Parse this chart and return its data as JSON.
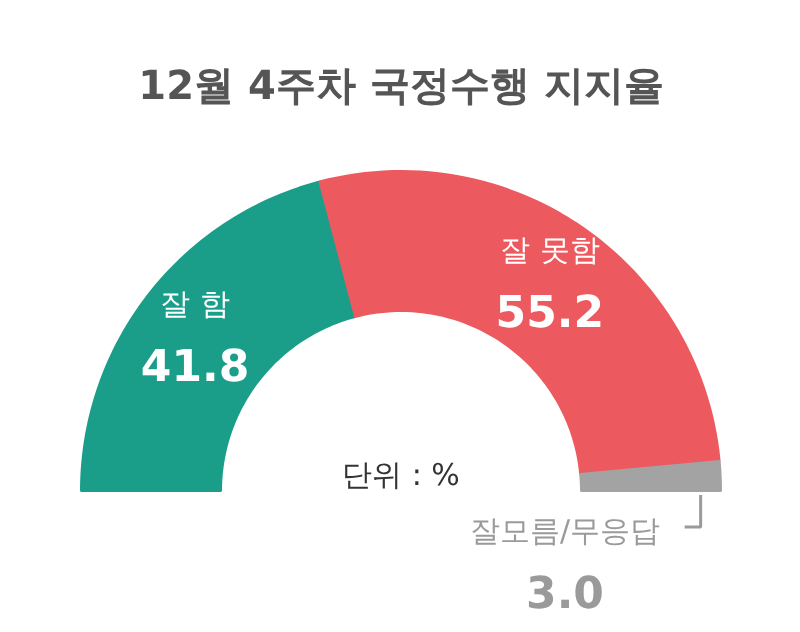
{
  "chart_data": {
    "type": "donut",
    "title": "12월 4주차 국정수행 지지율",
    "categories": [
      "잘 함",
      "잘 못함",
      "잘모름/무응답"
    ],
    "values": [
      41.8,
      55.2,
      3.0
    ],
    "colors": [
      "#1a9e8a",
      "#ec5a5f",
      "#a3a3a3"
    ],
    "value_labels": [
      "41.8",
      "55.2",
      "3.0"
    ],
    "annotations": [
      "단위 : %"
    ]
  }
}
